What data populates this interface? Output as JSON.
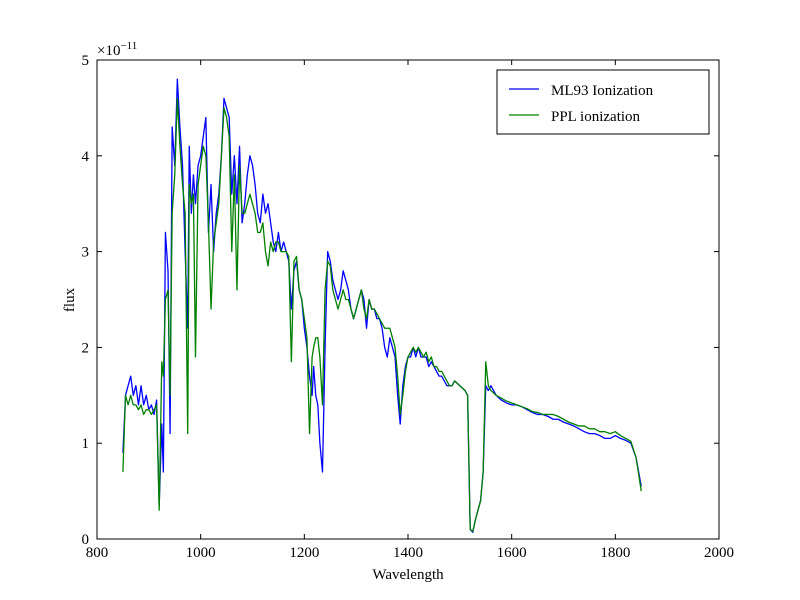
{
  "chart_data": {
    "type": "line",
    "xlabel": "Wavelength",
    "ylabel": "flux",
    "offset_base": "×10",
    "offset_exponent": "−11",
    "legend": "upper right",
    "xlim": [
      800,
      2000
    ],
    "xticks": [
      800,
      1000,
      1200,
      1400,
      1600,
      1800,
      2000
    ],
    "ylim": [
      0,
      5
    ],
    "yticks": [
      0,
      1,
      2,
      3,
      4,
      5
    ],
    "x": [
      850,
      855,
      860,
      865,
      870,
      875,
      880,
      885,
      890,
      895,
      900,
      905,
      910,
      915,
      920,
      925,
      928,
      932,
      937,
      941,
      945,
      950,
      955,
      960,
      965,
      970,
      975,
      978,
      982,
      986,
      990,
      995,
      1000,
      1005,
      1010,
      1015,
      1020,
      1025,
      1030,
      1035,
      1040,
      1045,
      1050,
      1055,
      1060,
      1065,
      1070,
      1075,
      1080,
      1085,
      1090,
      1095,
      1100,
      1105,
      1110,
      1115,
      1120,
      1125,
      1130,
      1135,
      1140,
      1145,
      1150,
      1155,
      1160,
      1165,
      1170,
      1175,
      1180,
      1185,
      1190,
      1195,
      1200,
      1205,
      1210,
      1215,
      1218,
      1222,
      1226,
      1230,
      1235,
      1240,
      1245,
      1250,
      1255,
      1260,
      1265,
      1270,
      1275,
      1280,
      1285,
      1290,
      1295,
      1300,
      1305,
      1310,
      1315,
      1320,
      1325,
      1330,
      1335,
      1340,
      1345,
      1350,
      1355,
      1360,
      1365,
      1370,
      1375,
      1380,
      1385,
      1390,
      1395,
      1400,
      1405,
      1410,
      1415,
      1420,
      1425,
      1430,
      1435,
      1440,
      1445,
      1450,
      1455,
      1460,
      1465,
      1470,
      1475,
      1480,
      1485,
      1490,
      1500,
      1510,
      1515,
      1520,
      1525,
      1530,
      1540,
      1545,
      1550,
      1555,
      1560,
      1570,
      1580,
      1590,
      1600,
      1610,
      1620,
      1630,
      1640,
      1650,
      1660,
      1670,
      1680,
      1690,
      1700,
      1710,
      1720,
      1730,
      1740,
      1750,
      1760,
      1770,
      1780,
      1790,
      1800,
      1810,
      1820,
      1830,
      1840,
      1850
    ],
    "series": [
      {
        "name": "ML93 Ionization",
        "color": "#0000ff",
        "values": [
          0.9,
          1.5,
          1.6,
          1.7,
          1.5,
          1.6,
          1.4,
          1.6,
          1.4,
          1.5,
          1.35,
          1.4,
          1.3,
          1.45,
          0.35,
          1.2,
          0.7,
          3.2,
          2.8,
          1.1,
          4.3,
          3.9,
          4.8,
          4.3,
          3.9,
          3.0,
          2.2,
          4.1,
          3.4,
          3.8,
          3.5,
          3.9,
          4.0,
          4.2,
          4.4,
          3.2,
          3.7,
          3.0,
          3.4,
          3.6,
          4.0,
          4.6,
          4.5,
          4.4,
          3.6,
          4.0,
          3.5,
          4.1,
          3.3,
          3.5,
          3.8,
          4.0,
          3.9,
          3.7,
          3.4,
          3.3,
          3.6,
          3.4,
          3.5,
          3.3,
          3.1,
          3.0,
          3.2,
          3.0,
          3.1,
          3.0,
          2.9,
          2.4,
          2.8,
          2.9,
          2.6,
          2.5,
          2.2,
          2.0,
          1.7,
          1.5,
          1.8,
          1.5,
          1.4,
          1.0,
          0.7,
          2.0,
          3.0,
          2.9,
          2.7,
          2.6,
          2.5,
          2.6,
          2.8,
          2.7,
          2.6,
          2.4,
          2.3,
          2.4,
          2.5,
          2.6,
          2.5,
          2.2,
          2.5,
          2.4,
          2.4,
          2.3,
          2.3,
          2.2,
          2.0,
          1.9,
          2.1,
          2.0,
          1.9,
          1.5,
          1.2,
          1.6,
          1.8,
          1.9,
          1.9,
          2.0,
          1.9,
          2.0,
          1.9,
          1.9,
          1.9,
          1.8,
          1.85,
          1.8,
          1.75,
          1.7,
          1.7,
          1.65,
          1.6,
          1.6,
          1.6,
          1.65,
          1.6,
          1.55,
          1.5,
          0.1,
          0.07,
          0.2,
          0.4,
          0.7,
          1.6,
          1.55,
          1.6,
          1.5,
          1.45,
          1.42,
          1.4,
          1.4,
          1.38,
          1.35,
          1.32,
          1.3,
          1.3,
          1.28,
          1.25,
          1.25,
          1.22,
          1.2,
          1.18,
          1.15,
          1.12,
          1.1,
          1.1,
          1.08,
          1.05,
          1.05,
          1.08,
          1.05,
          1.03,
          1.0,
          0.85,
          0.55
        ]
      },
      {
        "name": "PPL ionization",
        "color": "#008000",
        "values": [
          0.7,
          1.5,
          1.4,
          1.5,
          1.4,
          1.4,
          1.35,
          1.4,
          1.3,
          1.35,
          1.35,
          1.3,
          1.35,
          1.4,
          0.3,
          1.85,
          1.7,
          2.5,
          2.6,
          1.5,
          3.4,
          3.8,
          4.6,
          4.1,
          3.7,
          3.4,
          1.1,
          3.7,
          3.5,
          3.6,
          1.9,
          3.7,
          3.9,
          4.1,
          4.0,
          3.3,
          2.4,
          3.1,
          3.3,
          3.5,
          4.0,
          4.5,
          4.4,
          4.2,
          3.0,
          3.8,
          2.6,
          3.9,
          3.4,
          3.4,
          3.5,
          3.6,
          3.5,
          3.4,
          3.2,
          3.2,
          3.3,
          3.0,
          2.85,
          3.1,
          3.0,
          3.1,
          3.1,
          3.0,
          3.0,
          3.0,
          2.95,
          1.85,
          2.9,
          2.95,
          2.6,
          2.5,
          2.3,
          2.1,
          1.1,
          1.9,
          2.0,
          2.1,
          2.1,
          1.9,
          1.4,
          2.6,
          2.9,
          2.85,
          2.6,
          2.5,
          2.4,
          2.5,
          2.6,
          2.5,
          2.5,
          2.4,
          2.3,
          2.4,
          2.5,
          2.6,
          2.4,
          2.3,
          2.5,
          2.4,
          2.4,
          2.35,
          2.3,
          2.25,
          2.2,
          2.2,
          2.2,
          2.1,
          2.0,
          1.7,
          1.3,
          1.5,
          1.75,
          1.9,
          1.95,
          2.0,
          1.95,
          2.0,
          1.95,
          1.9,
          1.95,
          1.85,
          1.9,
          1.8,
          1.8,
          1.75,
          1.75,
          1.7,
          1.65,
          1.6,
          1.6,
          1.65,
          1.6,
          1.55,
          1.5,
          0.1,
          0.08,
          0.2,
          0.4,
          0.7,
          1.85,
          1.6,
          1.55,
          1.5,
          1.47,
          1.44,
          1.42,
          1.4,
          1.38,
          1.36,
          1.33,
          1.32,
          1.3,
          1.3,
          1.3,
          1.28,
          1.25,
          1.22,
          1.2,
          1.18,
          1.18,
          1.15,
          1.15,
          1.12,
          1.12,
          1.1,
          1.12,
          1.08,
          1.05,
          1.02,
          0.85,
          0.5
        ]
      }
    ]
  }
}
